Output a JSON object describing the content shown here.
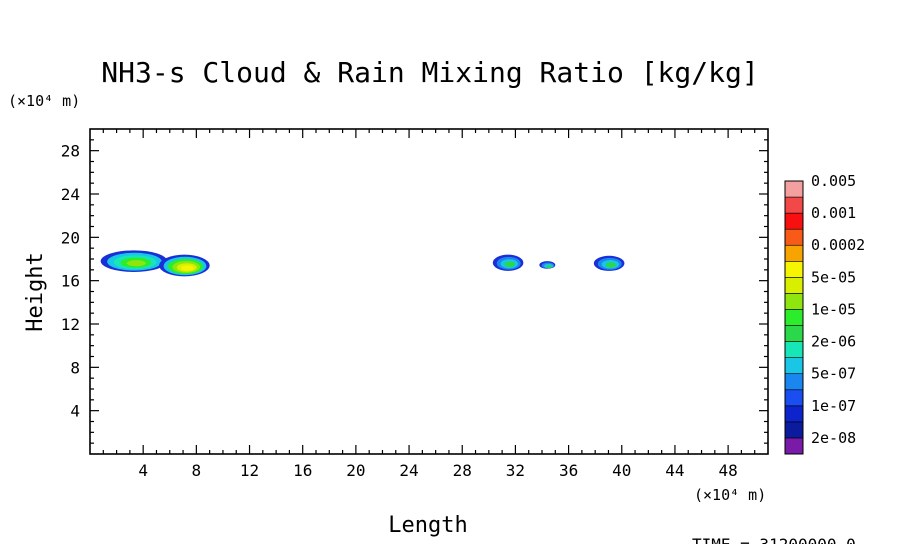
{
  "chart_data": {
    "type": "heatmap",
    "title": "NH3-s Cloud & Rain Mixing Ratio [kg/kg]",
    "xlabel": "Length",
    "ylabel": "Height",
    "x_unit": "(×10⁴ m)",
    "y_unit": "(×10⁴ m)",
    "xlim": [
      0,
      51
    ],
    "ylim": [
      0,
      30
    ],
    "x_ticks": [
      4,
      8,
      12,
      16,
      20,
      24,
      28,
      32,
      36,
      40,
      44,
      48
    ],
    "y_ticks": [
      4,
      8,
      12,
      16,
      20,
      24,
      28
    ],
    "time_label": "TIME = 31200000.0",
    "colorbar": {
      "levels": [
        "2e-08",
        "1e-07",
        "5e-07",
        "2e-06",
        "1e-05",
        "5e-05",
        "0.0002",
        "0.001",
        "0.005"
      ],
      "colors": [
        "#7a1aa8",
        "#0c1a9e",
        "#0d23cc",
        "#1a4ef0",
        "#1a86f0",
        "#19c6e6",
        "#17e6b8",
        "#2ad84a",
        "#2bed2b",
        "#8fe60f",
        "#d8f000",
        "#f6f400",
        "#f7a400",
        "#f85a18",
        "#f81010",
        "#f24848",
        "#f5a0a0"
      ]
    },
    "cloud_patches": [
      {
        "name": "cloud-a",
        "x_range": [
          0.8,
          5.8
        ],
        "y_range": [
          16.8,
          18.8
        ],
        "max_level": "5e-05"
      },
      {
        "name": "cloud-b",
        "x_range": [
          5.2,
          9.0
        ],
        "y_range": [
          16.4,
          18.4
        ],
        "max_level": "0.0002"
      },
      {
        "name": "cloud-c",
        "x_range": [
          30.3,
          32.6
        ],
        "y_range": [
          16.9,
          18.4
        ],
        "max_level": "5e-07"
      },
      {
        "name": "cloud-d",
        "x_range": [
          33.8,
          35.0
        ],
        "y_range": [
          17.1,
          17.8
        ],
        "max_level": "5e-07"
      },
      {
        "name": "cloud-e",
        "x_range": [
          37.9,
          40.2
        ],
        "y_range": [
          16.9,
          18.3
        ],
        "max_level": "5e-07"
      }
    ]
  }
}
